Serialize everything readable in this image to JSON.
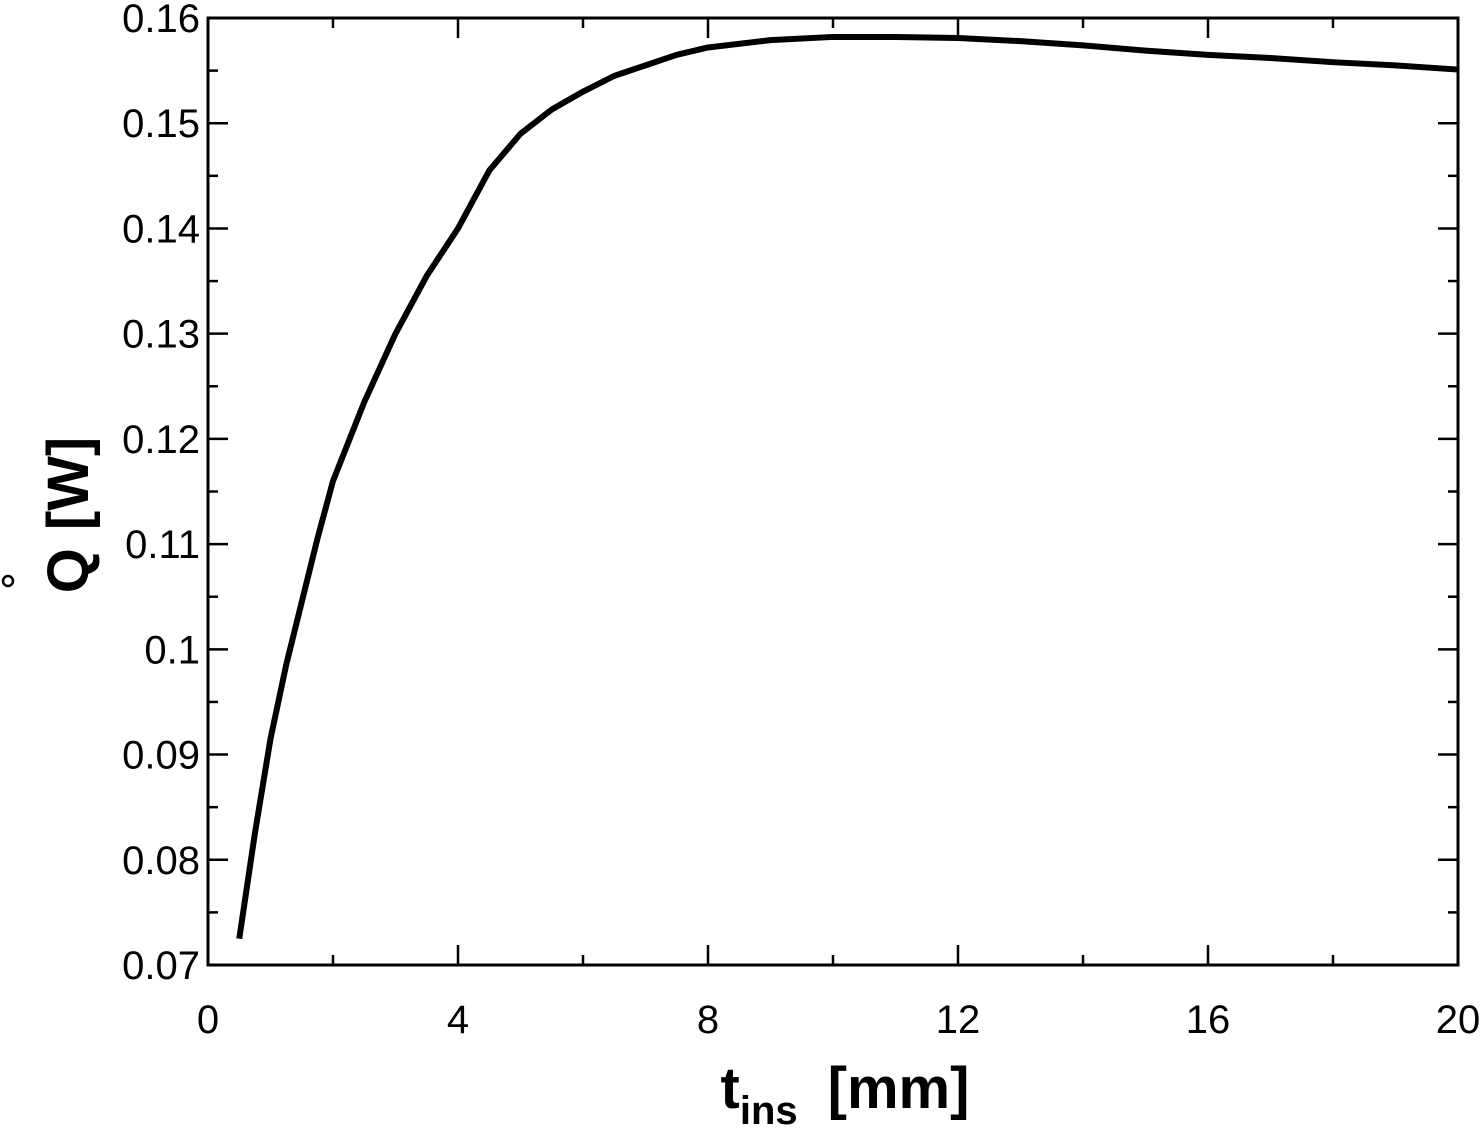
{
  "chart_data": {
    "type": "line",
    "xlabel": {
      "main": "t",
      "sub": "ins",
      "unit": "[mm]"
    },
    "ylabel": {
      "symbol": "Q",
      "unit": "[W]"
    },
    "xlim": [
      0,
      20
    ],
    "ylim": [
      0.07,
      0.16
    ],
    "x_ticks": [
      "0",
      "4",
      "8",
      "12",
      "16",
      "20"
    ],
    "y_ticks": [
      "0.07",
      "0.08",
      "0.09",
      "0.1",
      "0.11",
      "0.12",
      "0.13",
      "0.14",
      "0.15",
      "0.16"
    ],
    "grid": false,
    "line_color": "#000000",
    "series": [
      {
        "x": [
          0.5,
          0.75,
          1,
          1.25,
          1.5,
          1.75,
          2,
          2.5,
          3,
          3.5,
          4,
          4.5,
          5,
          5.5,
          6,
          6.5,
          7,
          7.5,
          8,
          9,
          10,
          11,
          12,
          13,
          14,
          15,
          16,
          17,
          18,
          19,
          20
        ],
        "y": [
          0.0725,
          0.0825,
          0.0915,
          0.0985,
          0.1045,
          0.1105,
          0.116,
          0.1235,
          0.13,
          0.1355,
          0.14,
          0.1455,
          0.149,
          0.1513,
          0.153,
          0.1545,
          0.1555,
          0.1565,
          0.1572,
          0.1579,
          0.1582,
          0.1582,
          0.1581,
          0.1578,
          0.1574,
          0.1569,
          0.1565,
          0.1562,
          0.1558,
          0.1555,
          0.1551
        ]
      }
    ]
  }
}
